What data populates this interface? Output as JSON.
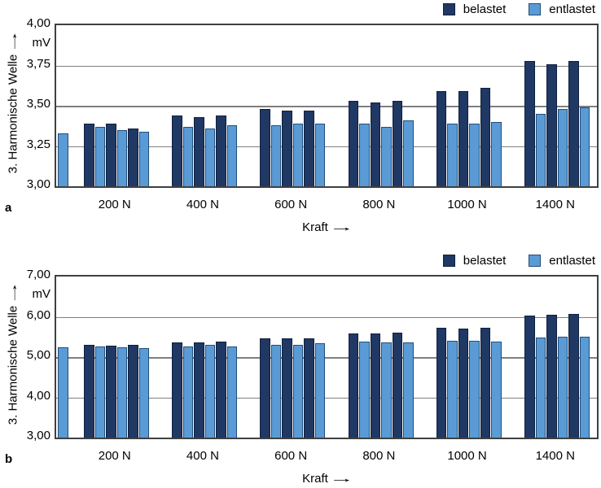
{
  "arrow": "→",
  "colors": {
    "belastet_fill": "#1f3864",
    "belastet_border": "#10203c",
    "entlastet_fill": "#5b9bd5",
    "entlastet_border": "#1f4e79",
    "gridline": "#7f7f7f",
    "frame": "#404040"
  },
  "chart_data": [
    {
      "panel": "a",
      "type": "bar",
      "ylabel": "3. Harmonische Welle",
      "unit": "mV",
      "xlabel": "Kraft",
      "legend": [
        "belastet",
        "entlastet"
      ],
      "ylim": [
        3.0,
        4.0
      ],
      "ytick_labels": [
        "4,00",
        "3,75",
        "3,50",
        "3,25",
        "3,00"
      ],
      "categories": [
        "200 N",
        "400 N",
        "600 N",
        "800 N",
        "1000 N",
        "1400 N"
      ],
      "initial_entlastet": 3.33,
      "series": [
        {
          "name": "belastet",
          "groups": [
            [
              3.39,
              3.39,
              3.36
            ],
            [
              3.44,
              3.43,
              3.44
            ],
            [
              3.48,
              3.47,
              3.47
            ],
            [
              3.53,
              3.52,
              3.53
            ],
            [
              3.59,
              3.59,
              3.61
            ],
            [
              3.78,
              3.76,
              3.78
            ]
          ]
        },
        {
          "name": "entlastet",
          "groups": [
            [
              3.37,
              3.35,
              3.34
            ],
            [
              3.37,
              3.36,
              3.38
            ],
            [
              3.38,
              3.39,
              3.39
            ],
            [
              3.39,
              3.37,
              3.41
            ],
            [
              3.39,
              3.39,
              3.4
            ],
            [
              3.45,
              3.48,
              3.49
            ]
          ]
        }
      ]
    },
    {
      "panel": "b",
      "type": "bar",
      "ylabel": "3. Harmonische Welle",
      "unit": "mV",
      "xlabel": "Kraft",
      "legend": [
        "belastet",
        "entlastet"
      ],
      "ylim": [
        3.0,
        7.0
      ],
      "ytick_labels": [
        "7,00",
        "6,00",
        "5,00",
        "4,00",
        "3,00"
      ],
      "categories": [
        "200 N",
        "400 N",
        "600 N",
        "800 N",
        "1000 N",
        "1400 N"
      ],
      "initial_entlastet": 5.25,
      "series": [
        {
          "name": "belastet",
          "groups": [
            [
              5.3,
              5.28,
              5.31
            ],
            [
              5.36,
              5.37,
              5.38
            ],
            [
              5.46,
              5.47,
              5.47
            ],
            [
              5.58,
              5.59,
              5.6
            ],
            [
              5.72,
              5.71,
              5.73
            ],
            [
              6.04,
              6.05,
              6.07
            ]
          ]
        },
        {
          "name": "entlastet",
          "groups": [
            [
              5.26,
              5.25,
              5.22
            ],
            [
              5.26,
              5.3,
              5.27
            ],
            [
              5.31,
              5.31,
              5.35
            ],
            [
              5.38,
              5.37,
              5.36
            ],
            [
              5.41,
              5.41,
              5.38
            ],
            [
              5.49,
              5.5,
              5.51
            ]
          ]
        }
      ]
    }
  ]
}
